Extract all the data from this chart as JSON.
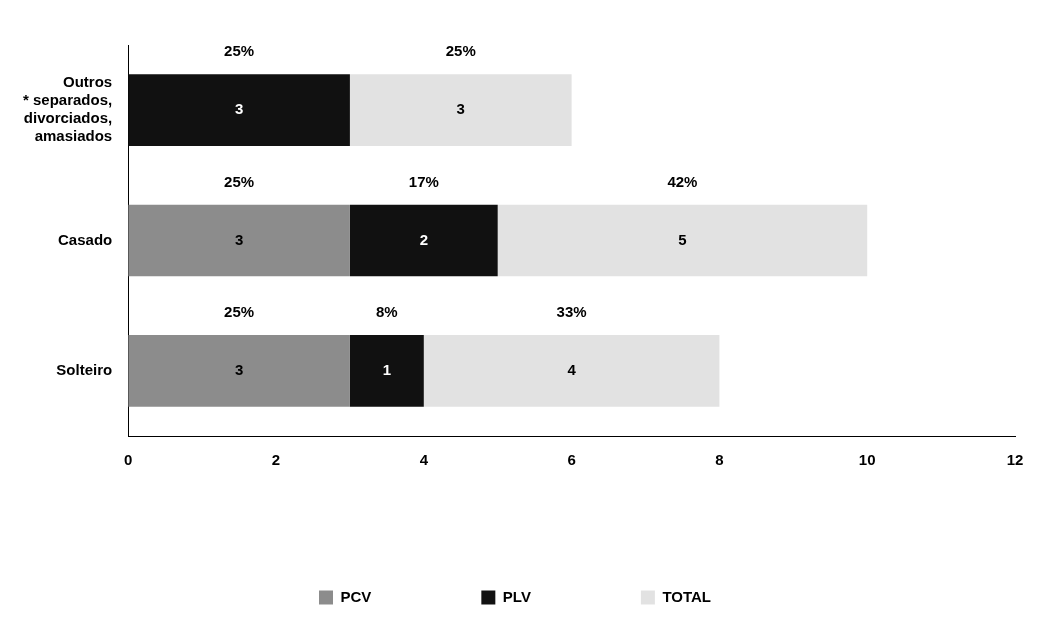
{
  "chart_data": {
    "type": "bar",
    "orientation": "horizontal",
    "stacked": true,
    "categories": [
      "Outros\n* separados,\ndivorciados,\namasiados",
      "Casado",
      "Solteiro"
    ],
    "series": [
      {
        "name": "PCV",
        "color": "#8c8c8c",
        "values": [
          null,
          3,
          3
        ]
      },
      {
        "name": "PLV",
        "color": "#111111",
        "values": [
          3,
          2,
          1
        ]
      },
      {
        "name": "TOTAL",
        "color": "#e2e2e2",
        "values": [
          3,
          5,
          4
        ]
      }
    ],
    "data_labels": true,
    "annotations": [
      "25%",
      "25%",
      "25%",
      "17%",
      "42%",
      "25%",
      "8%",
      "33%"
    ],
    "xlim": [
      0,
      12
    ],
    "xticks": [
      0,
      2,
      4,
      6,
      8,
      10,
      12
    ],
    "grid": false,
    "legend": "bottom"
  }
}
